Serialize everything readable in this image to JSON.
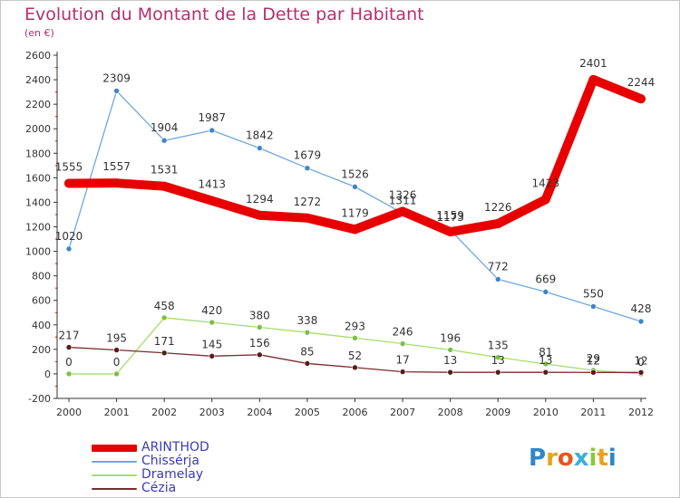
{
  "title": "Evolution du Montant de la Dette par Habitant",
  "subtitle": "(en €)",
  "logo": {
    "text": "Proxiti",
    "letters": [
      {
        "ch": "P",
        "color": "#2e86c8"
      },
      {
        "ch": "r",
        "color": "#e8a31c"
      },
      {
        "ch": "o",
        "color": "#e8561c"
      },
      {
        "ch": "x",
        "color": "#3bb0d8"
      },
      {
        "ch": "i",
        "color": "#8cc63f"
      },
      {
        "ch": "t",
        "color": "#e8a31c"
      },
      {
        "ch": "i",
        "color": "#2e86c8"
      }
    ]
  },
  "chart_data": {
    "type": "line",
    "title": "Evolution du Montant de la Dette par Habitant",
    "subtitle": "(en €)",
    "xlabel": "",
    "ylabel": "",
    "x": [
      "2000",
      "2001",
      "2002",
      "2003",
      "2004",
      "2005",
      "2006",
      "2007",
      "2008",
      "2009",
      "2010",
      "2011",
      "2012"
    ],
    "ylim": [
      -200,
      2600
    ],
    "ytick_step": 200,
    "grid": false,
    "legend_position": "bottom-left",
    "series": [
      {
        "name": "ARINTHOD",
        "color": "#e80000",
        "style": "thick",
        "values": [
          1555,
          1557,
          1531,
          1413,
          1294,
          1272,
          1179,
          1326,
          1159,
          1226,
          1423,
          2401,
          2244
        ],
        "labels": [
          "1555",
          "1557",
          "1531",
          "1413",
          "1294",
          "1272",
          "1179",
          "1326",
          "1159",
          "1226",
          "1423",
          "2401",
          "2244"
        ]
      },
      {
        "name": "Chissérja",
        "color": "#6fa8dc",
        "marker_color": "#3d85c6",
        "style": "thin",
        "values": [
          1020,
          2309,
          1904,
          1987,
          1842,
          1679,
          1526,
          1311,
          1173,
          772,
          669,
          550,
          428
        ],
        "labels": [
          "1020",
          "2309",
          "1904",
          "1987",
          "1842",
          "1679",
          "1526",
          "1311",
          "1173",
          "772",
          "669",
          "550",
          "428"
        ]
      },
      {
        "name": "Dramelay",
        "color": "#a4de6c",
        "marker_color": "#7bc043",
        "style": "thin",
        "values": [
          0,
          0,
          458,
          420,
          380,
          338,
          293,
          246,
          196,
          135,
          81,
          29,
          0
        ],
        "labels": [
          "0",
          "0",
          "458",
          "420",
          "380",
          "338",
          "293",
          "246",
          "196",
          "135",
          "81",
          "29",
          "0"
        ]
      },
      {
        "name": "Cézia",
        "color": "#7b2c2c",
        "marker_color": "#5a1a1a",
        "style": "thin",
        "values": [
          217,
          195,
          171,
          145,
          156,
          85,
          52,
          17,
          13,
          13,
          13,
          12,
          12
        ],
        "labels": [
          "217",
          "195",
          "171",
          "145",
          "156",
          "85",
          "52",
          "17",
          "13",
          "13",
          "13",
          "12",
          "12"
        ]
      }
    ]
  }
}
